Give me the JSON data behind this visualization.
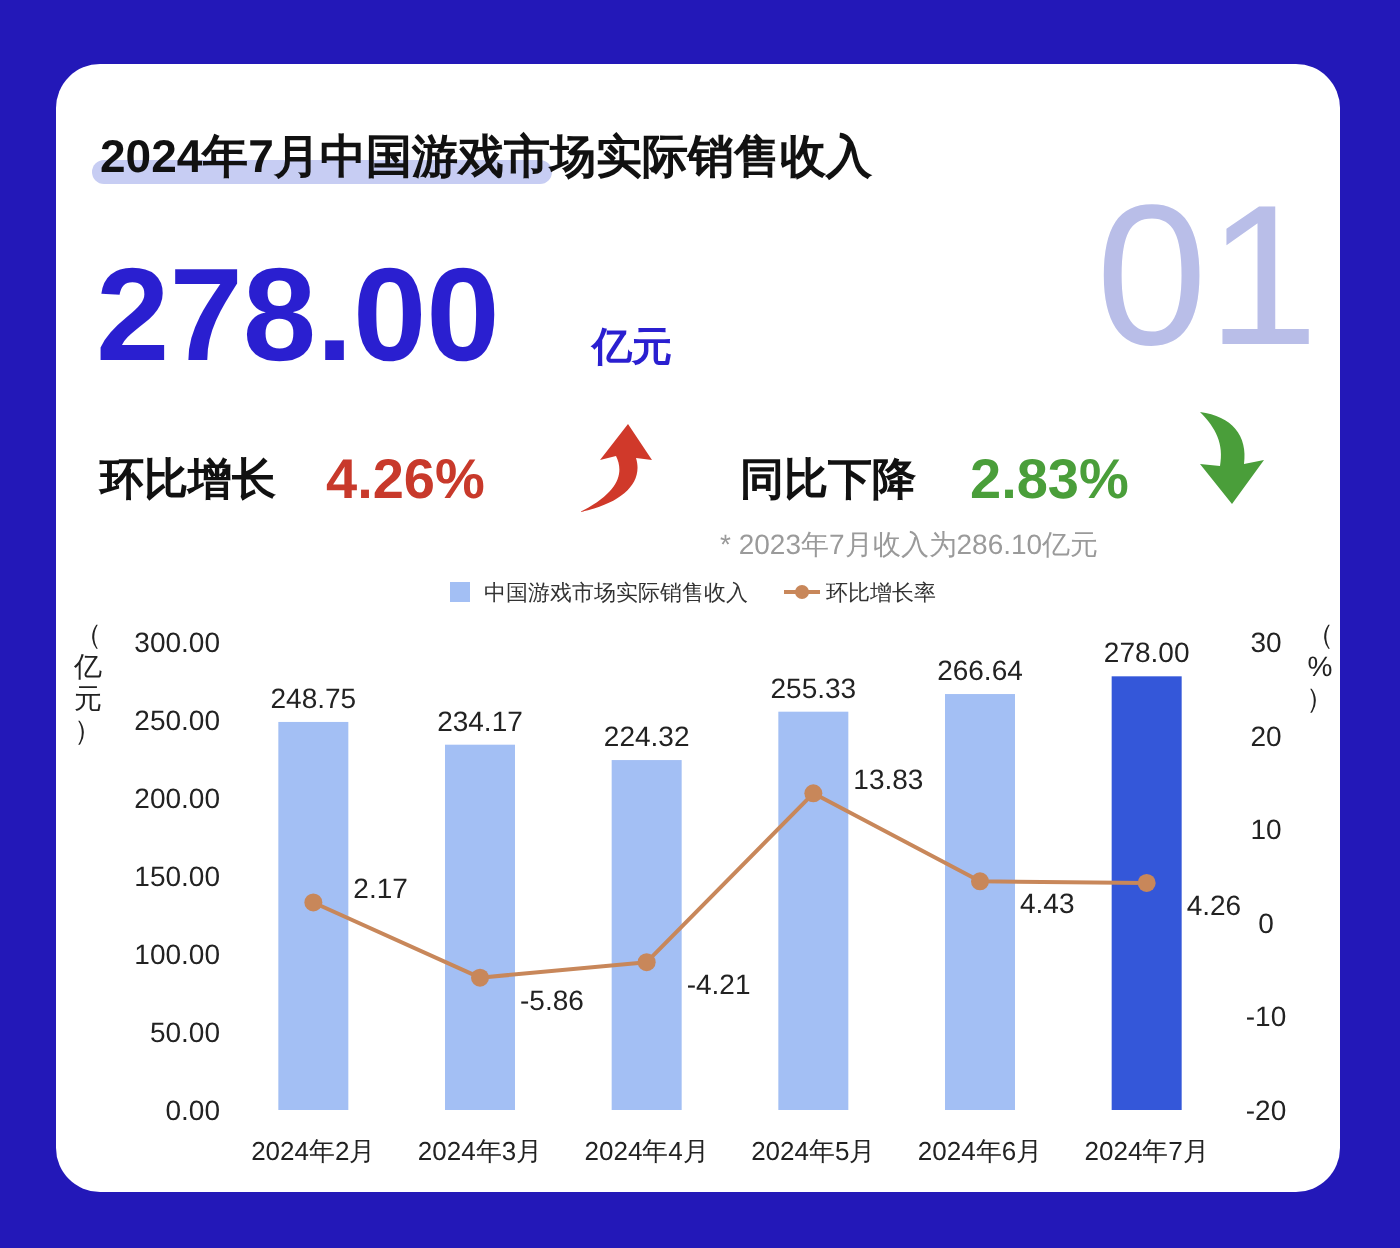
{
  "chart_data": {
    "type": "bar",
    "title": "2024年7月中国游戏市场实际销售收入",
    "annotations": [
      "01",
      "278.00",
      "亿元",
      "环比增长",
      "4.26%",
      "同比下降",
      "2.83%",
      "* 2023年7月收入为286.10亿元"
    ],
    "categories": [
      "2024年2月",
      "2024年3月",
      "2024年4月",
      "2024年5月",
      "2024年6月",
      "2024年7月"
    ],
    "series": [
      {
        "name": "中国游戏市场实际销售收入",
        "color": "#a3bff4",
        "colors": [
          "#a3bff4",
          "#a3bff4",
          "#a3bff4",
          "#a3bff4",
          "#a3bff4",
          "#3457d9"
        ],
        "values": [
          248.75,
          234.17,
          224.32,
          255.33,
          266.64,
          278.0
        ],
        "value_labels": [
          "248.75",
          "234.17",
          "224.32",
          "255.33",
          "266.64",
          "278.00"
        ]
      },
      {
        "name": "环比增长率",
        "type": "line",
        "axis": "y2",
        "color": "#c8875a",
        "marker": "circle",
        "values": [
          2.17,
          -5.86,
          -4.21,
          13.83,
          4.43,
          4.26
        ],
        "value_labels": [
          "2.17",
          "-5.86",
          "-4.21",
          "13.83",
          "4.43",
          "4.26"
        ]
      }
    ],
    "ylabel": "（亿元）",
    "y2label": "（%）",
    "ylim": [
      0,
      300
    ],
    "yticks": [
      {
        "value": 0,
        "label": "0.00"
      },
      {
        "value": 50,
        "label": "50.00"
      },
      {
        "value": 100,
        "label": "100.00"
      },
      {
        "value": 150,
        "label": "150.00"
      },
      {
        "value": 200,
        "label": "200.00"
      },
      {
        "value": 250,
        "label": "250.00"
      },
      {
        "value": 300,
        "label": "300.00"
      }
    ],
    "y2lim": [
      -20,
      30
    ],
    "y2ticks": [
      -20,
      -10,
      0,
      10,
      20,
      30
    ],
    "grid": false,
    "legend": "top"
  }
}
